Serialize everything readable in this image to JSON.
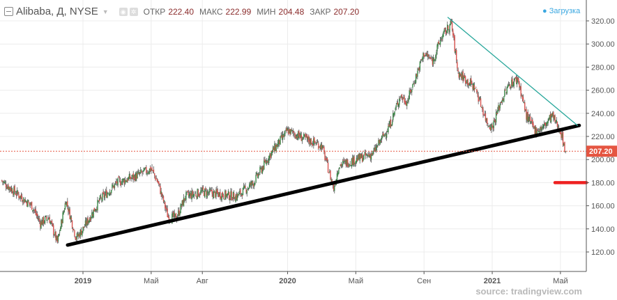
{
  "header": {
    "symbol": "Alibaba, Д, NYSE",
    "open_label": "ОТКР",
    "open": "222.40",
    "high_label": "МАКС",
    "high": "222.99",
    "low_label": "МИН",
    "low": "204.48",
    "close_label": "ЗАКР",
    "close": "207.20",
    "loading": "Загрузка"
  },
  "watermark": "source: tradingview.com",
  "colors": {
    "up": "#3b8a48",
    "down": "#d9534f",
    "body": "#777777",
    "resistance": "#26a69a",
    "support": "#000000",
    "price_line": "#e55541",
    "level": "#ee2020"
  },
  "chart_data": {
    "type": "candlestick",
    "title": "Alibaba, Д, NYSE",
    "ylim": [
      100,
      335
    ],
    "y_ticks": [
      "120.00",
      "140.00",
      "160.00",
      "180.00",
      "200.00",
      "220.00",
      "240.00",
      "260.00",
      "280.00",
      "300.00",
      "320.00"
    ],
    "y_tick_values": [
      120,
      140,
      160,
      180,
      200,
      220,
      240,
      260,
      280,
      300,
      320
    ],
    "x_ticks": [
      {
        "label": "2019",
        "month": 0
      },
      {
        "label": "Май",
        "month": 4
      },
      {
        "label": "Авг",
        "month": 7
      },
      {
        "label": "2020",
        "month": 12
      },
      {
        "label": "Май",
        "month": 16
      },
      {
        "label": "Сен",
        "month": 20
      },
      {
        "label": "2021",
        "month": 24
      },
      {
        "label": "Май",
        "month": 28
      }
    ],
    "close_path": [
      [
        -4.8,
        182
      ],
      [
        -4,
        172
      ],
      [
        -3,
        160
      ],
      [
        -2.5,
        145
      ],
      [
        -2,
        150
      ],
      [
        -1.5,
        128
      ],
      [
        -1,
        165
      ],
      [
        -0.4,
        132
      ],
      [
        0,
        140
      ],
      [
        1,
        165
      ],
      [
        2,
        180
      ],
      [
        3,
        185
      ],
      [
        4,
        192
      ],
      [
        4.4,
        180
      ],
      [
        5,
        150
      ],
      [
        5.5,
        150
      ],
      [
        6,
        168
      ],
      [
        7,
        172
      ],
      [
        8,
        170
      ],
      [
        9,
        168
      ],
      [
        10,
        180
      ],
      [
        11,
        205
      ],
      [
        12,
        225
      ],
      [
        13,
        218
      ],
      [
        14,
        212
      ],
      [
        14.7,
        175
      ],
      [
        15,
        195
      ],
      [
        16,
        200
      ],
      [
        17,
        205
      ],
      [
        18,
        230
      ],
      [
        18.6,
        255
      ],
      [
        19,
        250
      ],
      [
        20,
        292
      ],
      [
        20.5,
        285
      ],
      [
        21,
        305
      ],
      [
        21.6,
        318
      ],
      [
        22,
        275
      ],
      [
        23,
        262
      ],
      [
        23.7,
        232
      ],
      [
        24,
        228
      ],
      [
        24.5,
        250
      ],
      [
        25,
        265
      ],
      [
        25.5,
        270
      ],
      [
        26,
        238
      ],
      [
        26.5,
        225
      ],
      [
        27,
        228
      ],
      [
        27.5,
        238
      ],
      [
        28,
        225
      ],
      [
        28.3,
        207.2
      ]
    ],
    "last_price": 207.2,
    "trendlines": [
      {
        "name": "support",
        "from": {
          "month": -0.9,
          "price": 126
        },
        "to": {
          "month": 29.1,
          "price": 229.5
        }
      },
      {
        "name": "resistance",
        "from": {
          "month": 21.4,
          "price": 323
        },
        "to": {
          "month": 29.0,
          "price": 229.5
        }
      }
    ],
    "horizontal_level": 180
  }
}
